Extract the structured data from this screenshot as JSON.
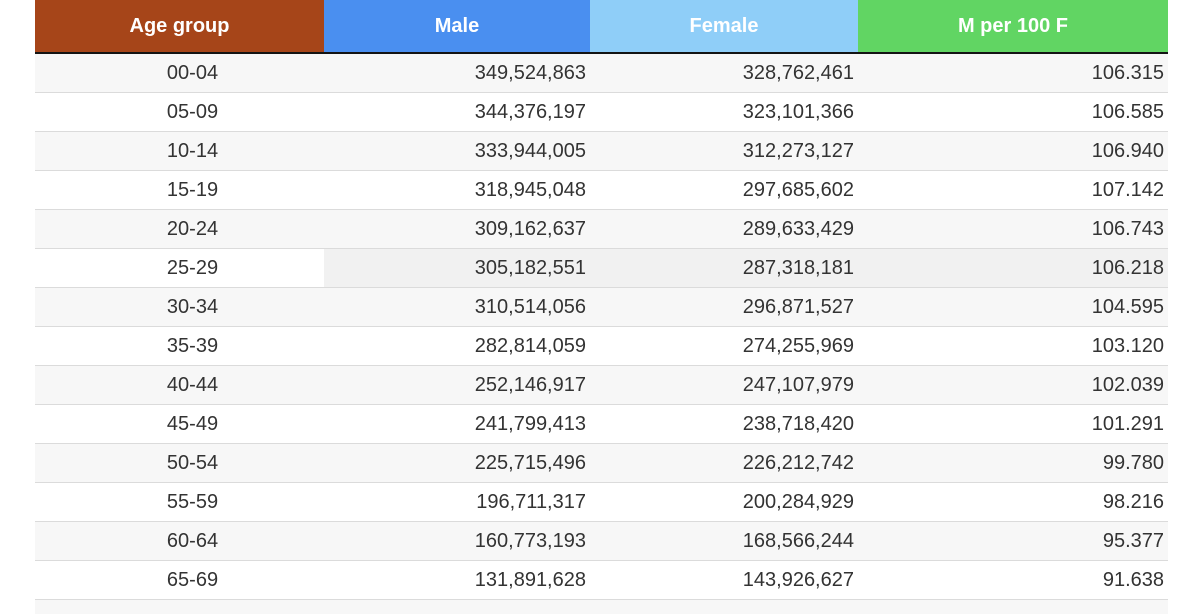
{
  "table": {
    "columns": [
      {
        "key": "age_group",
        "label": "Age group",
        "header_color": "#A64519"
      },
      {
        "key": "male",
        "label": "Male",
        "header_color": "#4A8FF0"
      },
      {
        "key": "female",
        "label": "Female",
        "header_color": "#8FCEF8"
      },
      {
        "key": "m_per_100_f",
        "label": "M per 100 F",
        "header_color": "#61D563"
      }
    ],
    "rows": [
      {
        "age_group": "00-04",
        "male": "349,524,863",
        "female": "328,762,461",
        "m_per_100_f": "106.315"
      },
      {
        "age_group": "05-09",
        "male": "344,376,197",
        "female": "323,101,366",
        "m_per_100_f": "106.585"
      },
      {
        "age_group": "10-14",
        "male": "333,944,005",
        "female": "312,273,127",
        "m_per_100_f": "106.940"
      },
      {
        "age_group": "15-19",
        "male": "318,945,048",
        "female": "297,685,602",
        "m_per_100_f": "107.142"
      },
      {
        "age_group": "20-24",
        "male": "309,162,637",
        "female": "289,633,429",
        "m_per_100_f": "106.743"
      },
      {
        "age_group": "25-29",
        "male": "305,182,551",
        "female": "287,318,181",
        "m_per_100_f": "106.218"
      },
      {
        "age_group": "30-34",
        "male": "310,514,056",
        "female": "296,871,527",
        "m_per_100_f": "104.595"
      },
      {
        "age_group": "35-39",
        "male": "282,814,059",
        "female": "274,255,969",
        "m_per_100_f": "103.120"
      },
      {
        "age_group": "40-44",
        "male": "252,146,917",
        "female": "247,107,979",
        "m_per_100_f": "102.039"
      },
      {
        "age_group": "45-49",
        "male": "241,799,413",
        "female": "238,718,420",
        "m_per_100_f": "101.291"
      },
      {
        "age_group": "50-54",
        "male": "225,715,496",
        "female": "226,212,742",
        "m_per_100_f": "99.780"
      },
      {
        "age_group": "55-59",
        "male": "196,711,317",
        "female": "200,284,929",
        "m_per_100_f": "98.216"
      },
      {
        "age_group": "60-64",
        "male": "160,773,193",
        "female": "168,566,244",
        "m_per_100_f": "95.377"
      },
      {
        "age_group": "65-69",
        "male": "131,891,628",
        "female": "143,926,627",
        "m_per_100_f": "91.638"
      }
    ],
    "highlighted_row": "25-29",
    "partial_next_row": true
  },
  "colors": {
    "row_stripe": "#F7F7F7",
    "row_hover": "#F1F1F1",
    "row_border": "#DBDBDB",
    "header_rule": "#141414",
    "body_text": "#333333",
    "header_text": "#FFFFFF"
  }
}
